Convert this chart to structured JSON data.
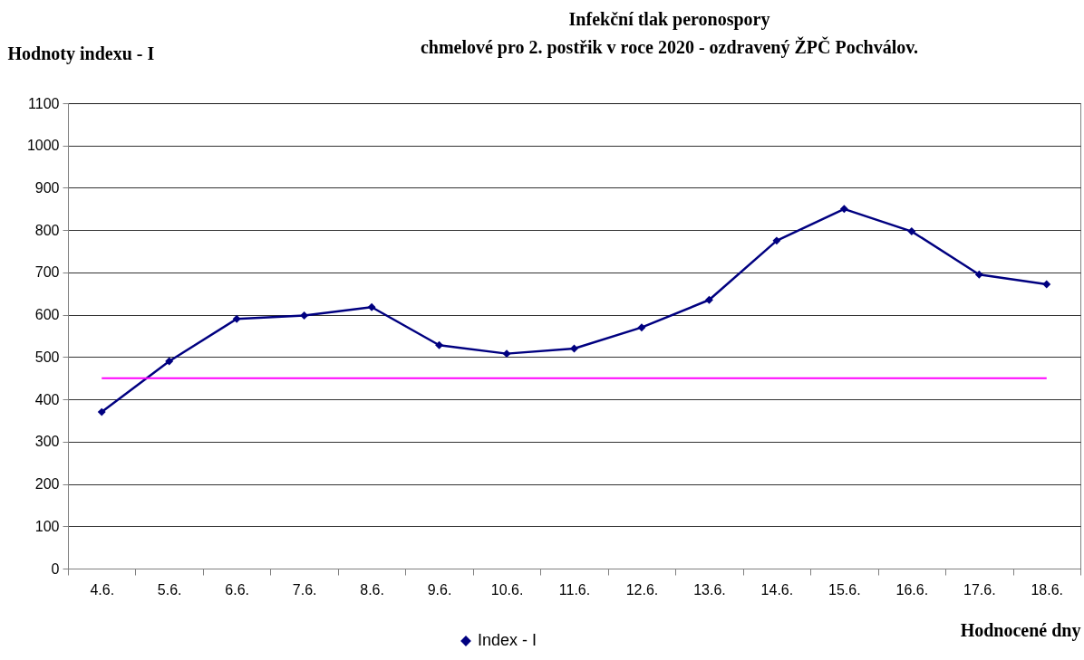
{
  "chart_data": {
    "type": "line",
    "title": "Infekční tlak peronospory\nchmelové pro 2. postřik v roce 2020 - ozdravený ŽPČ  Pochválov.",
    "ylabel": "Hodnoty indexu - I",
    "xlabel": "Hodnocené dny",
    "categories": [
      "4.6.",
      "5.6.",
      "6.6.",
      "7.6.",
      "8.6.",
      "9.6.",
      "10.6.",
      "11.6.",
      "12.6.",
      "13.6.",
      "14.6.",
      "15.6.",
      "16.6.",
      "17.6.",
      "18.6."
    ],
    "series": [
      {
        "name": "Index - I",
        "color": "#000080",
        "values": [
          370,
          490,
          590,
          598,
          618,
          528,
          508,
          520,
          570,
          635,
          775,
          850,
          797,
          695,
          672
        ]
      }
    ],
    "ref_lines": [
      {
        "axis": "y",
        "value": 450,
        "color": "#ff00ff"
      }
    ],
    "ylim": [
      0,
      1100
    ],
    "yticks": [
      0,
      100,
      200,
      300,
      400,
      500,
      600,
      700,
      800,
      900,
      1000,
      1100
    ],
    "grid": "y",
    "legend": "bottom",
    "marker": "diamond",
    "line_style": "solid"
  }
}
